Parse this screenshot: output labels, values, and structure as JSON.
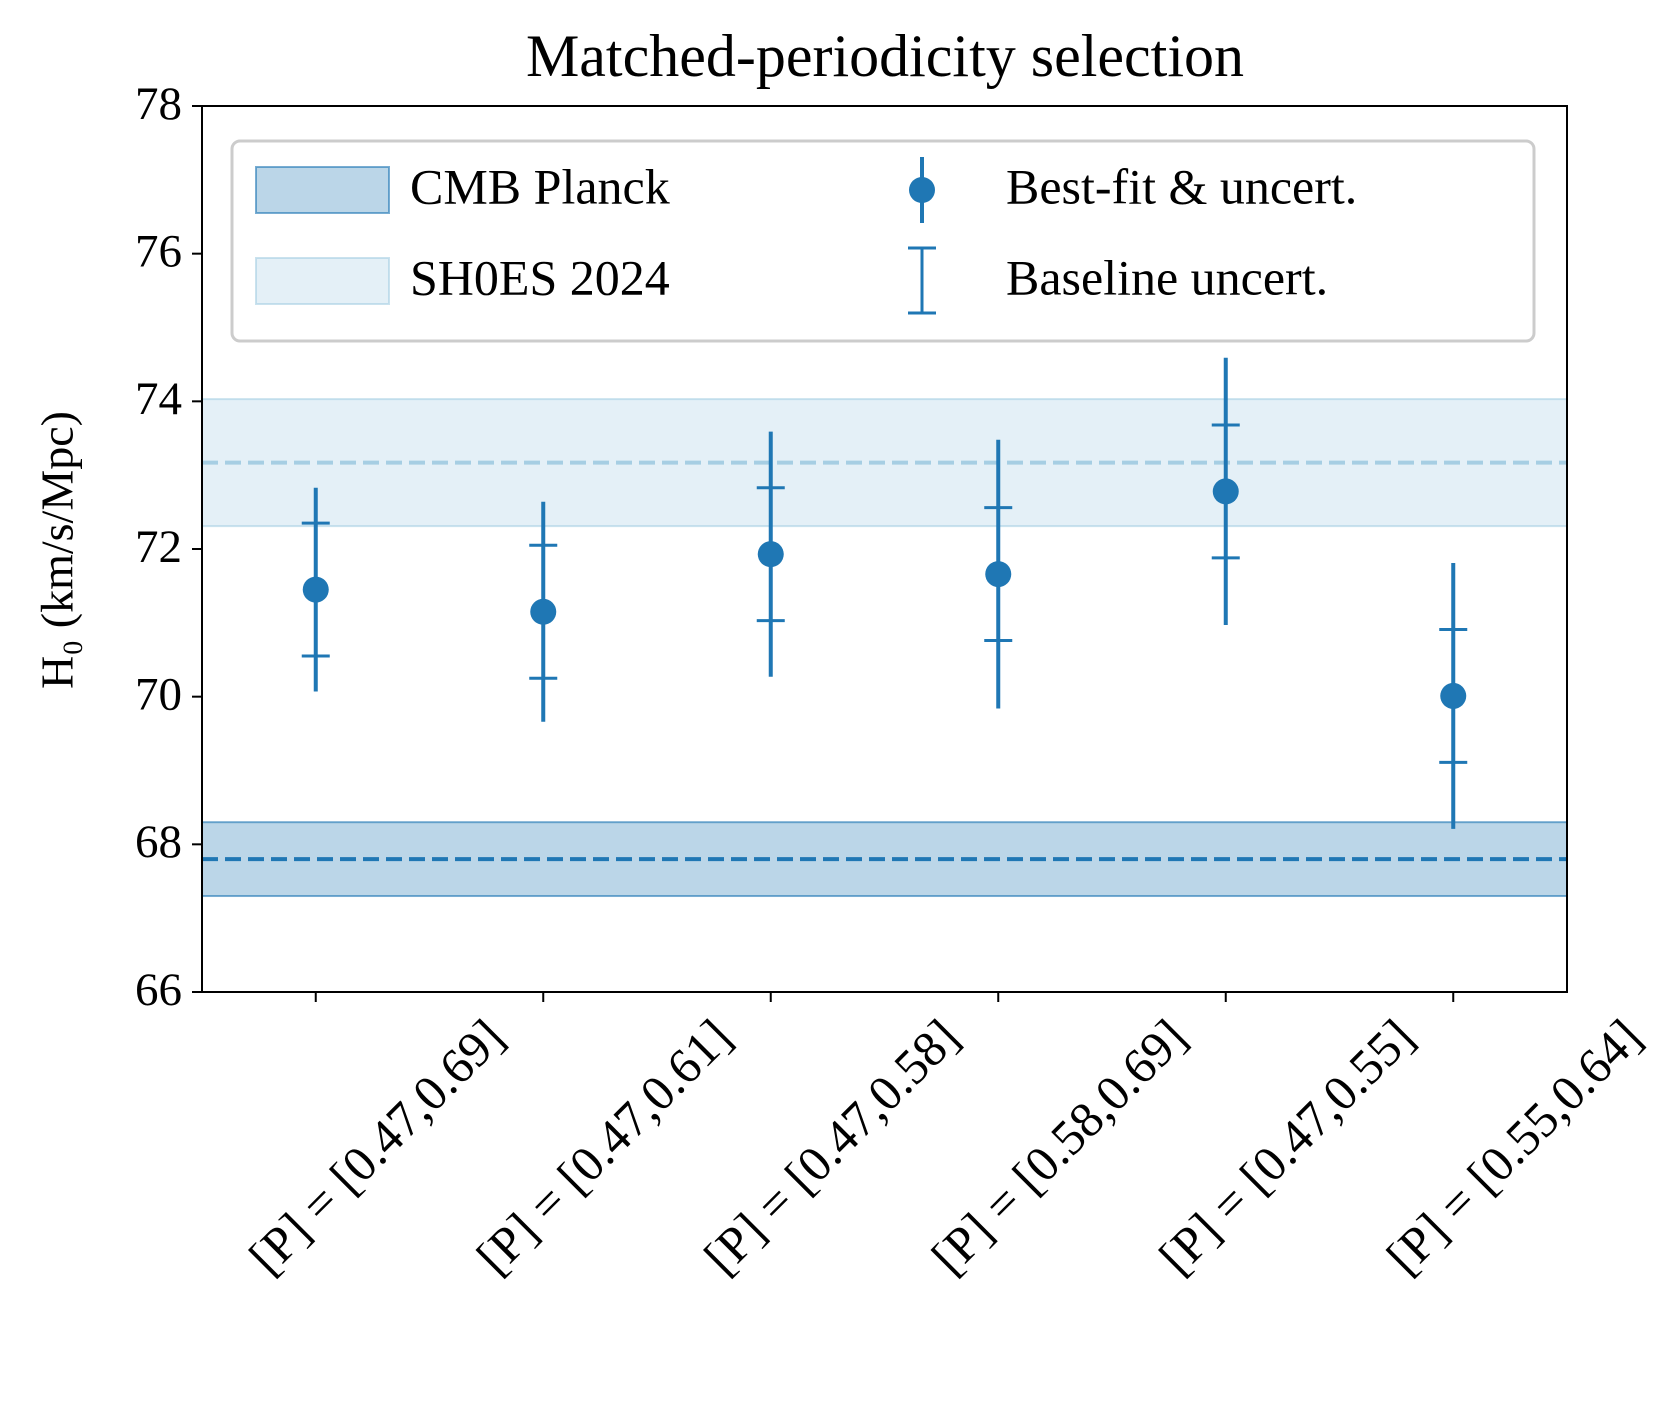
{
  "chart_data": {
    "type": "errorbar",
    "title": "Matched-periodicity selection",
    "y_label": "H₀ (km/s/Mpc)",
    "categories": [
      "[P] = [0.47,0.69]",
      "[P] = [0.47,0.61]",
      "[P] = [0.47,0.58]",
      "[P] = [0.58,0.69]",
      "[P] = [0.47,0.55]",
      "[P] = [0.55,0.64]"
    ],
    "series": [
      {
        "name": "Best-fit & uncert.",
        "color": "#1f77b4",
        "values": [
          71.45,
          71.15,
          71.93,
          71.66,
          72.78,
          70.01
        ],
        "errors": [
          1.38,
          1.49,
          1.66,
          1.82,
          1.81,
          1.8
        ]
      },
      {
        "name": "Baseline uncert.",
        "color": "#1f77b4",
        "values": [
          71.45,
          71.15,
          71.93,
          71.66,
          72.78,
          70.01
        ],
        "errors": [
          0.9,
          0.9,
          0.9,
          0.9,
          0.9,
          0.9
        ]
      }
    ],
    "bands": [
      {
        "name": "CMB Planck",
        "center": 67.8,
        "half_width": 0.5,
        "color": "#1f77b4",
        "opacity": 0.3
      },
      {
        "name": "SH0ES 2024",
        "center": 73.17,
        "half_width": 0.86,
        "color": "#a6cee3",
        "opacity": 0.3
      }
    ],
    "ylim": [
      66,
      78
    ],
    "yticks": [
      66,
      68,
      70,
      72,
      74,
      76,
      78
    ],
    "legend": "upper"
  }
}
